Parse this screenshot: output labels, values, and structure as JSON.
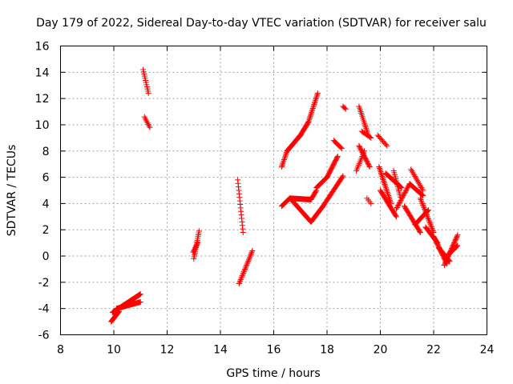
{
  "chart_data": {
    "type": "scatter",
    "title": "Day 179 of 2022, Sidereal Day-to-day VTEC variation (SDTVAR) for receiver salu",
    "xlabel": "GPS time / hours",
    "ylabel": "SDTVAR / TECUs",
    "xlim": [
      8,
      24
    ],
    "ylim": [
      -6,
      16
    ],
    "xticks": [
      "8",
      "10",
      "12",
      "14",
      "16",
      "18",
      "20",
      "22",
      "24"
    ],
    "yticks": [
      "-6",
      "-4",
      "-2",
      "0",
      "2",
      "4",
      "6",
      "8",
      "10",
      "12",
      "14",
      "16"
    ],
    "grid": true,
    "legend": "none",
    "marker": "plus",
    "color": "#ff0000",
    "series": [
      {
        "name": "SDTVAR",
        "segments": [
          {
            "x0": 9.9,
            "y0": -5.0,
            "x1": 10.2,
            "y1": -4.2,
            "n": 18
          },
          {
            "x0": 9.95,
            "y0": -4.3,
            "x1": 11.0,
            "y1": -2.9,
            "n": 60
          },
          {
            "x0": 10.1,
            "y0": -4.0,
            "x1": 11.0,
            "y1": -3.5,
            "n": 40
          },
          {
            "x0": 11.1,
            "y0": 14.2,
            "x1": 11.3,
            "y1": 12.4,
            "n": 12
          },
          {
            "x0": 11.15,
            "y0": 10.6,
            "x1": 11.35,
            "y1": 9.8,
            "n": 8
          },
          {
            "x0": 13.0,
            "y0": -0.2,
            "x1": 13.2,
            "y1": 1.9,
            "n": 16
          },
          {
            "x0": 12.98,
            "y0": 0.3,
            "x1": 13.15,
            "y1": 1.0,
            "n": 10
          },
          {
            "x0": 14.65,
            "y0": 5.8,
            "x1": 14.85,
            "y1": 1.8,
            "n": 16
          },
          {
            "x0": 14.7,
            "y0": -2.1,
            "x1": 15.2,
            "y1": 0.4,
            "n": 26
          },
          {
            "x0": 16.3,
            "y0": 6.8,
            "x1": 16.5,
            "y1": 8.0,
            "n": 12
          },
          {
            "x0": 16.5,
            "y0": 8.0,
            "x1": 17.0,
            "y1": 9.2,
            "n": 28
          },
          {
            "x0": 17.0,
            "y0": 9.2,
            "x1": 17.3,
            "y1": 10.2,
            "n": 16
          },
          {
            "x0": 17.3,
            "y0": 10.2,
            "x1": 17.65,
            "y1": 12.4,
            "n": 22
          },
          {
            "x0": 16.3,
            "y0": 3.8,
            "x1": 16.6,
            "y1": 4.4,
            "n": 14
          },
          {
            "x0": 16.6,
            "y0": 4.4,
            "x1": 17.4,
            "y1": 4.3,
            "n": 40
          },
          {
            "x0": 17.4,
            "y0": 4.3,
            "x1": 17.6,
            "y1": 5.0,
            "n": 10
          },
          {
            "x0": 17.6,
            "y0": 5.2,
            "x1": 18.0,
            "y1": 6.0,
            "n": 18
          },
          {
            "x0": 18.0,
            "y0": 6.0,
            "x1": 18.4,
            "y1": 7.6,
            "n": 22
          },
          {
            "x0": 16.7,
            "y0": 4.2,
            "x1": 17.4,
            "y1": 2.6,
            "n": 30
          },
          {
            "x0": 17.4,
            "y0": 2.6,
            "x1": 17.85,
            "y1": 3.8,
            "n": 20
          },
          {
            "x0": 17.85,
            "y0": 3.8,
            "x1": 18.6,
            "y1": 6.1,
            "n": 30
          },
          {
            "x0": 18.25,
            "y0": 8.8,
            "x1": 18.55,
            "y1": 8.2,
            "n": 10
          },
          {
            "x0": 18.6,
            "y0": 11.4,
            "x1": 18.7,
            "y1": 11.2,
            "n": 4
          },
          {
            "x0": 19.2,
            "y0": 11.4,
            "x1": 19.55,
            "y1": 9.2,
            "n": 18
          },
          {
            "x0": 19.2,
            "y0": 8.4,
            "x1": 19.6,
            "y1": 6.8,
            "n": 20
          },
          {
            "x0": 19.3,
            "y0": 9.5,
            "x1": 19.65,
            "y1": 9.0,
            "n": 10
          },
          {
            "x0": 19.1,
            "y0": 6.5,
            "x1": 19.4,
            "y1": 8.0,
            "n": 12
          },
          {
            "x0": 19.5,
            "y0": 4.4,
            "x1": 19.65,
            "y1": 4.0,
            "n": 4
          },
          {
            "x0": 19.9,
            "y0": 9.2,
            "x1": 20.25,
            "y1": 8.4,
            "n": 10
          },
          {
            "x0": 19.95,
            "y0": 6.8,
            "x1": 20.4,
            "y1": 4.0,
            "n": 24
          },
          {
            "x0": 20.0,
            "y0": 5.0,
            "x1": 20.6,
            "y1": 3.0,
            "n": 28
          },
          {
            "x0": 20.2,
            "y0": 6.3,
            "x1": 20.8,
            "y1": 5.2,
            "n": 24
          },
          {
            "x0": 20.5,
            "y0": 6.5,
            "x1": 20.75,
            "y1": 4.5,
            "n": 14
          },
          {
            "x0": 20.6,
            "y0": 3.6,
            "x1": 21.1,
            "y1": 5.5,
            "n": 22
          },
          {
            "x0": 21.1,
            "y0": 5.5,
            "x1": 21.6,
            "y1": 4.6,
            "n": 22
          },
          {
            "x0": 21.15,
            "y0": 6.6,
            "x1": 21.6,
            "y1": 5.0,
            "n": 16
          },
          {
            "x0": 20.9,
            "y0": 3.8,
            "x1": 21.5,
            "y1": 1.8,
            "n": 26
          },
          {
            "x0": 21.3,
            "y0": 2.4,
            "x1": 21.8,
            "y1": 3.5,
            "n": 20
          },
          {
            "x0": 21.5,
            "y0": 4.4,
            "x1": 22.0,
            "y1": 1.8,
            "n": 26
          },
          {
            "x0": 21.7,
            "y0": 2.2,
            "x1": 22.15,
            "y1": 1.0,
            "n": 20
          },
          {
            "x0": 22.0,
            "y0": 1.5,
            "x1": 22.5,
            "y1": -0.6,
            "n": 28
          },
          {
            "x0": 22.2,
            "y0": 0.6,
            "x1": 22.6,
            "y1": -0.4,
            "n": 18
          },
          {
            "x0": 22.4,
            "y0": -0.7,
            "x1": 22.9,
            "y1": 1.6,
            "n": 28
          },
          {
            "x0": 22.5,
            "y0": 0.0,
            "x1": 22.9,
            "y1": 0.8,
            "n": 16
          }
        ]
      }
    ]
  }
}
